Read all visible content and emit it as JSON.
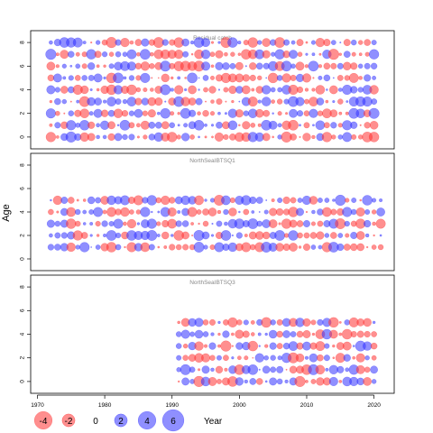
{
  "chart_data": {
    "type": "bubble",
    "ylabel": "Age",
    "xlabel": "",
    "x_ticks": [
      1970,
      1980,
      1990,
      2000,
      2010,
      2020
    ],
    "y_ticks": [
      0,
      2,
      4,
      6,
      8
    ],
    "xlim": [
      1969,
      2023
    ],
    "ylim": [
      -1,
      9
    ],
    "colors": {
      "positive": "#3333ff",
      "negative": "#ff3333",
      "frame": "#000000"
    },
    "legend": {
      "items": [
        {
          "label": "-4",
          "value": -4
        },
        {
          "label": "-2",
          "value": -2
        },
        {
          "label": "0",
          "value": 0
        },
        {
          "label": "2",
          "value": 2
        },
        {
          "label": "4",
          "value": 4
        },
        {
          "label": "6",
          "value": 6
        }
      ],
      "axis_word": "Year"
    },
    "panels": [
      {
        "title": "Residual catch",
        "year_range": [
          1972,
          2020
        ],
        "ages": [
          0,
          1,
          2,
          3,
          4,
          5,
          6,
          7,
          8
        ]
      },
      {
        "title": "NorthSeaIBTSQ1",
        "year_range": [
          1972,
          2021
        ],
        "ages": [
          1,
          2,
          3,
          4,
          5
        ]
      },
      {
        "title": "NorthSeaIBTSQ3",
        "year_range": [
          1991,
          2020
        ],
        "ages": [
          0,
          1,
          2,
          3,
          4,
          5
        ]
      }
    ]
  }
}
